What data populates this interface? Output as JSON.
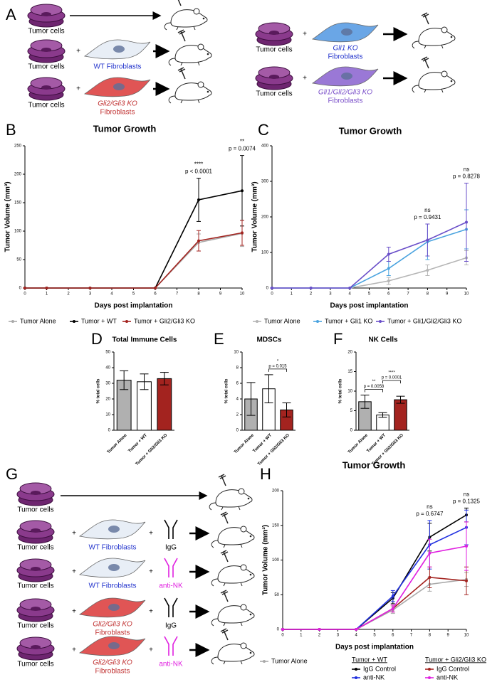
{
  "panel_labels": [
    "A",
    "B",
    "C",
    "D",
    "E",
    "F",
    "G",
    "H"
  ],
  "plus": "+",
  "panel_a": {
    "tumor_cells": "Tumor cells",
    "wt": "WT Fibroblasts",
    "gli23": "Gli2/Gli3 KO",
    "gli1": "Gli1 KO",
    "gli123": "Gli1/Gli2/Gli3 KO",
    "fibroblasts": "Fibroblasts"
  },
  "panel_g": {
    "tumor_cells": "Tumor cells",
    "wt": "WT Fibroblasts",
    "gli23": "Gli2/Gli3 KO",
    "fibroblasts": "Fibroblasts",
    "igg": "IgG",
    "anti_nk": "anti-NK"
  },
  "chart_data": [
    {
      "type": "line",
      "title": "Tumor Growth",
      "x_label": "Days post implantation",
      "y_label": "Tumor Volume (mm³)",
      "x": [
        0,
        1,
        3,
        6,
        8,
        10
      ],
      "xlim": [
        0,
        10
      ],
      "xticks": [
        0,
        1,
        2,
        3,
        4,
        5,
        6,
        7,
        8,
        9,
        10
      ],
      "ylim": [
        0,
        250
      ],
      "yticks": [
        0,
        50,
        100,
        150,
        200,
        250
      ],
      "series": [
        {
          "name": "Tumor Alone",
          "color": "#aaaaaa",
          "values": [
            0,
            0,
            0,
            0,
            80,
            96
          ],
          "errors": [
            0,
            0,
            0,
            0,
            15,
            23
          ]
        },
        {
          "name": "Tumor + WT",
          "color": "#000000",
          "values": [
            0,
            0,
            0,
            0,
            155,
            171
          ],
          "errors": [
            0,
            0,
            0,
            0,
            38,
            62
          ]
        },
        {
          "name": "Tumor + Gli2/Gli3 KO",
          "color": "#a3231f",
          "values": [
            0,
            0,
            0,
            0,
            83,
            97
          ],
          "errors": [
            0,
            0,
            0,
            0,
            18,
            22
          ]
        }
      ],
      "annotations": [
        {
          "x": 8,
          "stars": "****",
          "text": "p < 0.0001"
        },
        {
          "x": 10,
          "stars": "**",
          "text": "p = 0.0074"
        }
      ]
    },
    {
      "type": "line",
      "title": "Tumor Growth",
      "x_label": "Days post implantation",
      "y_label": "Tumor Volume (mm³)",
      "x": [
        0,
        2,
        4,
        6,
        8,
        10
      ],
      "xlim": [
        0,
        10
      ],
      "xticks": [
        0,
        1,
        2,
        3,
        4,
        5,
        6,
        7,
        8,
        9,
        10
      ],
      "ylim": [
        0,
        400
      ],
      "yticks": [
        0,
        100,
        200,
        300,
        400
      ],
      "series": [
        {
          "name": "Tumor Alone",
          "color": "#b5b5b5",
          "values": [
            0,
            0,
            0,
            20,
            50,
            85
          ],
          "errors": [
            0,
            0,
            0,
            10,
            15,
            20
          ]
        },
        {
          "name": "Tumor + Gli1 KO",
          "color": "#4aa3df",
          "values": [
            0,
            0,
            0,
            55,
            130,
            165
          ],
          "errors": [
            0,
            0,
            0,
            20,
            50,
            55
          ]
        },
        {
          "name": "Tumor + Gli1/Gli2/Gli3 KO",
          "color": "#6a4fc9",
          "values": [
            0,
            0,
            0,
            95,
            135,
            185
          ],
          "errors": [
            0,
            0,
            0,
            20,
            45,
            110
          ]
        }
      ],
      "annotations": [
        {
          "x": 8,
          "stars": "ns",
          "text": "p = 0.9431"
        },
        {
          "x": 10,
          "stars": "ns",
          "text": "p = 0.8278"
        }
      ]
    },
    {
      "type": "bar",
      "title": "Total Immune Cells",
      "y_label": "% total cells",
      "categories": [
        "Tumor Alone",
        "Tumor + WT",
        "Tumor + Gli2/Gli3 KO"
      ],
      "colors": [
        "#b0b0b0",
        "#ffffff",
        "#a3231f"
      ],
      "values": [
        32,
        31,
        33
      ],
      "errors": [
        6,
        5,
        4
      ],
      "ylim": [
        0,
        50
      ],
      "yticks": [
        0,
        10,
        20,
        30,
        40,
        50
      ],
      "comparisons": []
    },
    {
      "type": "bar",
      "title": "MDSCs",
      "y_label": "% total cells",
      "categories": [
        "Tumor Alone",
        "Tumor + WT",
        "Tumor + Gli2/Gli3 KO"
      ],
      "colors": [
        "#b0b0b0",
        "#ffffff",
        "#a3231f"
      ],
      "values": [
        4.0,
        5.3,
        2.6
      ],
      "errors": [
        2.1,
        1.8,
        0.9
      ],
      "ylim": [
        0,
        10
      ],
      "yticks": [
        0,
        2,
        4,
        6,
        8,
        10
      ],
      "comparisons": [
        {
          "between": [
            "Tumor + WT",
            "Tumor + Gli2/Gli3 KO"
          ],
          "stars": "*",
          "text": "p = 0.015"
        }
      ]
    },
    {
      "type": "bar",
      "title": "NK Cells",
      "y_label": "% total cells",
      "categories": [
        "Tumor Alone",
        "Tumor + WT",
        "Tumor + Gli2/Gli3 KO"
      ],
      "colors": [
        "#b0b0b0",
        "#ffffff",
        "#a3231f"
      ],
      "values": [
        7.3,
        3.9,
        7.8
      ],
      "errors": [
        1.7,
        0.6,
        0.9
      ],
      "ylim": [
        0,
        20
      ],
      "yticks": [
        0,
        5,
        10,
        15,
        20
      ],
      "comparisons": [
        {
          "between": [
            "Tumor Alone",
            "Tumor + WT"
          ],
          "stars": "**",
          "text": "p = 0.0058"
        },
        {
          "between": [
            "Tumor + WT",
            "Tumor + Gli2/Gli3 KO"
          ],
          "stars": "****",
          "text": "p = 0.0001"
        }
      ]
    },
    {
      "type": "line",
      "title": "Tumor Growth",
      "x_label": "Days post implantation",
      "y_label": "Tumor Volume (mm³)",
      "x": [
        0,
        2,
        4,
        6,
        8,
        10
      ],
      "xlim": [
        0,
        10
      ],
      "xticks": [
        0,
        1,
        2,
        3,
        4,
        5,
        6,
        7,
        8,
        9,
        10
      ],
      "ylim": [
        0,
        200
      ],
      "yticks": [
        0,
        50,
        100,
        150,
        200
      ],
      "legend_groups": [
        "Tumor + WT",
        "Tumor + Gli2/Gli3 KO"
      ],
      "series": [
        {
          "name": "Tumor Alone",
          "color": "#aaaaaa",
          "values": [
            0,
            0,
            0,
            28,
            65,
            72
          ],
          "errors": [
            0,
            0,
            0,
            5,
            10,
            10
          ]
        },
        {
          "name": "IgG Control",
          "color": "#000000",
          "values": [
            0,
            0,
            0,
            45,
            133,
            165
          ],
          "errors": [
            0,
            0,
            0,
            8,
            20,
            10
          ]
        },
        {
          "name": "anti-NK",
          "color": "#2030e0",
          "values": [
            0,
            0,
            0,
            48,
            122,
            147
          ],
          "errors": [
            0,
            0,
            0,
            8,
            35,
            25
          ]
        },
        {
          "name": "IgG Control",
          "color": "#a3231f",
          "values": [
            0,
            0,
            0,
            30,
            75,
            70
          ],
          "errors": [
            0,
            0,
            0,
            5,
            15,
            20
          ]
        },
        {
          "name": "anti-NK",
          "color": "#e020e0",
          "values": [
            0,
            0,
            0,
            30,
            110,
            120
          ],
          "errors": [
            0,
            0,
            0,
            5,
            20,
            35
          ]
        }
      ],
      "annotations": [
        {
          "x": 8,
          "stars": "ns",
          "text": "p = 0.6747"
        },
        {
          "x": 10,
          "stars": "ns",
          "text": "p = 0.1325"
        }
      ]
    }
  ]
}
